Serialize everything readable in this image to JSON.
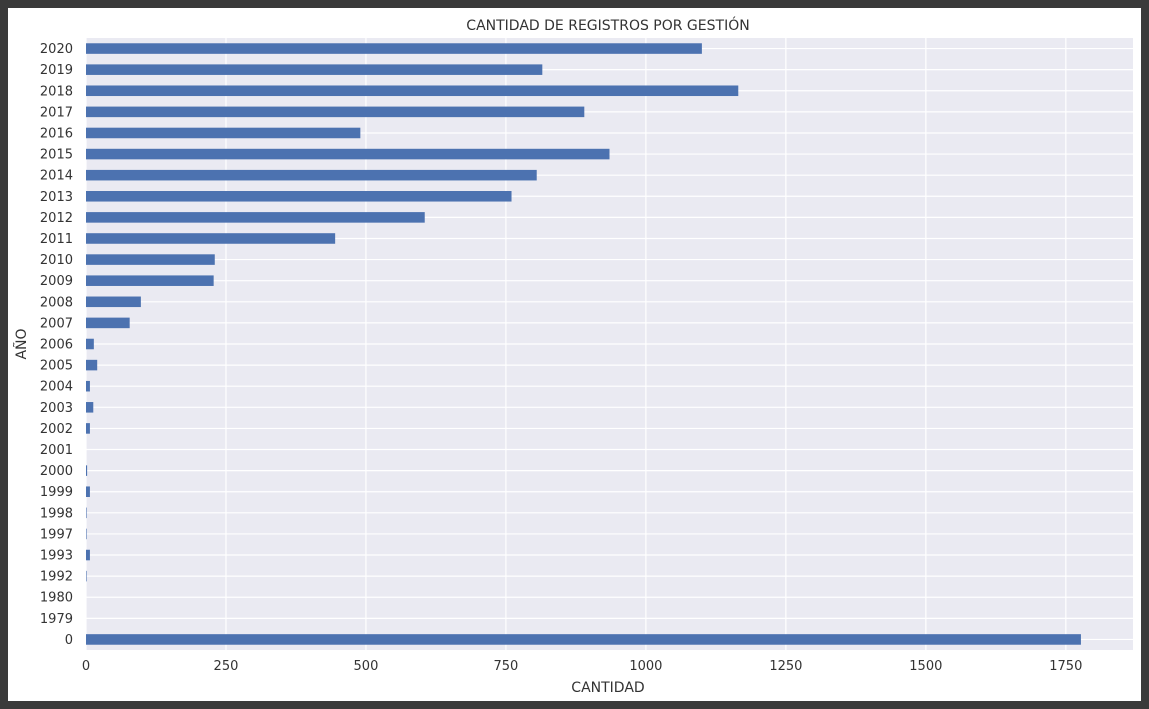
{
  "chart_data": {
    "type": "bar",
    "orientation": "horizontal",
    "title": "CANTIDAD DE REGISTROS POR GESTIÓN",
    "xlabel": "CANTIDAD",
    "ylabel": "AÑO",
    "xlim": [
      0,
      1870
    ],
    "xticks": [
      0,
      250,
      500,
      750,
      1000,
      1250,
      1500,
      1750
    ],
    "grid": true,
    "categories": [
      "2020",
      "2019",
      "2018",
      "2017",
      "2016",
      "2015",
      "2014",
      "2013",
      "2012",
      "2011",
      "2010",
      "2009",
      "2008",
      "2007",
      "2006",
      "2005",
      "2004",
      "2003",
      "2002",
      "2001",
      "2000",
      "1999",
      "1998",
      "1997",
      "1993",
      "1992",
      "1980",
      "1979",
      "0"
    ],
    "values": [
      1100,
      815,
      1165,
      890,
      490,
      935,
      805,
      760,
      605,
      445,
      230,
      228,
      98,
      78,
      14,
      20,
      7,
      13,
      7,
      0,
      2,
      7,
      1,
      1,
      7,
      1,
      0,
      0,
      1777
    ],
    "bar_color": "#4c72b0",
    "background_color": "#eaeaf2",
    "grid_color": "#ffffff"
  }
}
